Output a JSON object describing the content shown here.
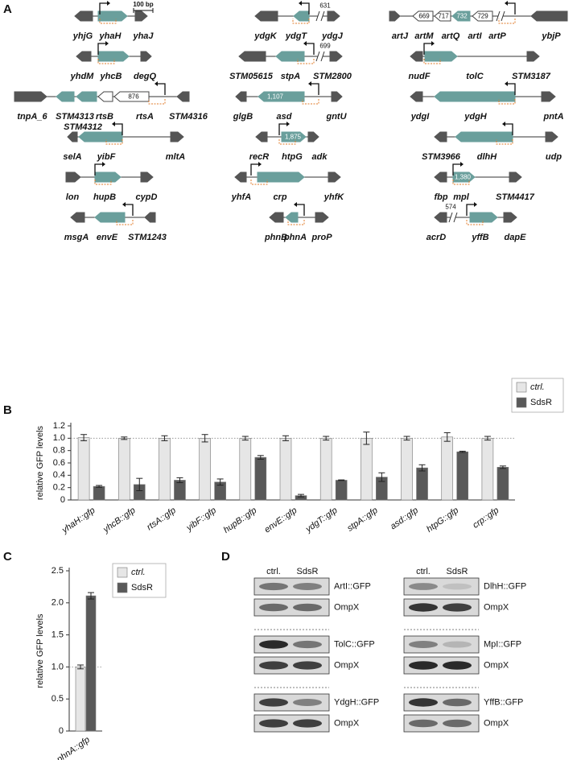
{
  "panels": [
    "A",
    "B",
    "C",
    "D"
  ],
  "gene_maps": [
    {
      "genes": [
        "yhjG",
        "yhaH",
        "yhaJ"
      ],
      "scale": "100 bp"
    },
    {
      "genes": [
        "ydgK",
        "ydgT",
        "ydgJ"
      ],
      "lengths": [
        "631"
      ]
    },
    {
      "genes": [
        "artJ",
        "artM",
        "artQ",
        "artI",
        "artP",
        "ybjP"
      ],
      "lengths": [
        "669",
        "717",
        "732",
        "729"
      ]
    },
    {
      "genes": [
        "yhdM",
        "yhcB",
        "degQ"
      ]
    },
    {
      "genes": [
        "STM05615",
        "stpA",
        "STM2800"
      ],
      "lengths": [
        "699"
      ]
    },
    {
      "genes": [
        "nudF",
        "tolC",
        "STM3187"
      ]
    },
    {
      "genes": [
        "tnpA_6",
        "STM4313",
        "STM4312",
        "rtsB",
        "rtsA",
        "STM4316"
      ],
      "lengths": [
        "876"
      ]
    },
    {
      "genes": [
        "glgB",
        "asd",
        "gntU"
      ],
      "lengths": [
        "1,107"
      ]
    },
    {
      "genes": [
        "ydgI",
        "ydgH",
        "pntA"
      ]
    },
    {
      "genes": [
        "selA",
        "yibF",
        "mltA"
      ]
    },
    {
      "genes": [
        "recR",
        "htpG",
        "adk"
      ],
      "lengths": [
        "1,875"
      ]
    },
    {
      "genes": [
        "STM3966",
        "dlhH",
        "udp"
      ]
    },
    {
      "genes": [
        "lon",
        "hupB",
        "cypD"
      ]
    },
    {
      "genes": [
        "yhfA",
        "crp",
        "yhfK"
      ]
    },
    {
      "genes": [
        "fbp",
        "mpl",
        "STM4417"
      ],
      "lengths": [
        "1,380"
      ]
    },
    {
      "genes": [
        "msgA",
        "envE",
        "STM1243"
      ]
    },
    {
      "genes": [
        "phnB",
        "phnA",
        "proP"
      ]
    },
    {
      "genes": [
        "acrD",
        "yffB",
        "dapE"
      ],
      "lengths": [
        "574"
      ]
    }
  ],
  "chart_data": [
    {
      "type": "bar",
      "ylabel": "relative GFP levels",
      "categories": [
        "yhaH::gfp",
        "yhcB::gfp",
        "rtsA::gfp",
        "yibF::gfp",
        "hupB::gfp",
        "envE::gfp",
        "ydgT::gfp",
        "stpA::gfp",
        "asd::gfp",
        "htpG::gfp",
        "crp::gfp"
      ],
      "series": [
        {
          "name": "ctrl.",
          "color": "#e6e6e6",
          "values": [
            1.01,
            1.0,
            1.0,
            1.0,
            1.0,
            1.0,
            1.0,
            1.0,
            1.0,
            1.02,
            1.0
          ],
          "errors": [
            0.05,
            0.02,
            0.04,
            0.06,
            0.03,
            0.04,
            0.03,
            0.1,
            0.03,
            0.07,
            0.03
          ]
        },
        {
          "name": "SdsR",
          "color": "#595959",
          "values": [
            0.22,
            0.25,
            0.32,
            0.29,
            0.69,
            0.07,
            0.32,
            0.37,
            0.52,
            0.78,
            0.53
          ],
          "errors": [
            0.015,
            0.1,
            0.04,
            0.05,
            0.03,
            0.02,
            0.005,
            0.07,
            0.05,
            0.01,
            0.02
          ]
        }
      ],
      "ylim": [
        0,
        1.2
      ],
      "yticks": [
        0,
        0.2,
        0.4,
        0.6,
        0.8,
        {
          "value": 1,
          "label": "1.0"
        },
        1.2
      ],
      "reference_line": 1,
      "legend": "upper right"
    },
    {
      "type": "bar",
      "ylabel": "relative GFP levels",
      "categories": [
        "phnA::gfp"
      ],
      "series": [
        {
          "name": "ctrl.",
          "color": "#e6e6e6",
          "values": [
            1.0
          ],
          "errors": [
            0.03
          ]
        },
        {
          "name": "SdsR",
          "color": "#595959",
          "values": [
            2.11
          ],
          "errors": [
            0.05
          ]
        }
      ],
      "ylim": [
        0,
        2.5
      ],
      "yticks": [
        0,
        0.5,
        {
          "value": 1,
          "label": "1.0"
        },
        1.5,
        {
          "value": 2,
          "label": "2.0"
        },
        2.5
      ],
      "reference_line": 1,
      "legend": "upper right"
    }
  ],
  "blots": [
    {
      "lanes": [
        "ctrl.",
        "SdsR"
      ],
      "rows": [
        {
          "target": "ArtI::GFP",
          "control": "OmpX"
        },
        {
          "target": "TolC::GFP",
          "control": "OmpX"
        },
        {
          "target": "YdgH::GFP",
          "control": "OmpX"
        }
      ]
    },
    {
      "lanes": [
        "ctrl.",
        "SdsR"
      ],
      "rows": [
        {
          "target": "DlhH::GFP",
          "control": "OmpX"
        },
        {
          "target": "MpI::GFP",
          "control": "OmpX"
        },
        {
          "target": "YffB::GFP",
          "control": "OmpX"
        }
      ]
    }
  ]
}
